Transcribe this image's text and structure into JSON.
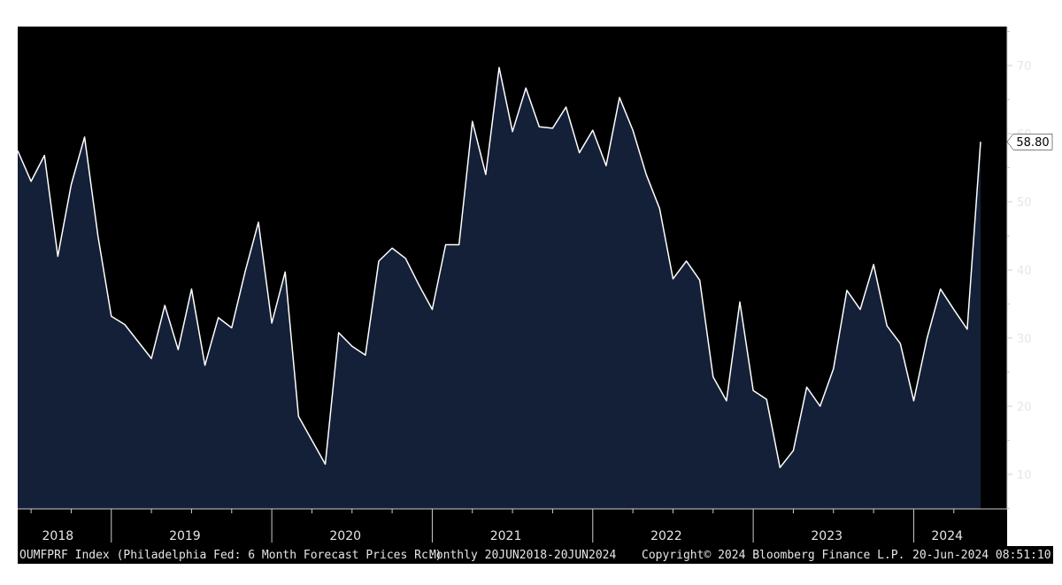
{
  "chart_data": {
    "type": "area",
    "series": [
      {
        "values": [
          57.5,
          53.0,
          56.8,
          42.0,
          52.5,
          59.5,
          45.0,
          33.2,
          32.0,
          29.5,
          27.0,
          34.8,
          28.3,
          37.2,
          26.0,
          33.0,
          31.5,
          39.7,
          47.0,
          32.2,
          39.7,
          18.5,
          15.0,
          11.5,
          30.8,
          28.8,
          27.5,
          41.3,
          43.2,
          41.7,
          37.8,
          34.2,
          43.7,
          43.7,
          61.8,
          54.0,
          69.7,
          60.3,
          66.7,
          61.0,
          60.8,
          63.9,
          57.2,
          60.5,
          55.3,
          65.3,
          60.5,
          54.0,
          49.0,
          38.7,
          41.3,
          38.5,
          24.3,
          20.8,
          35.3,
          22.3,
          21.0,
          11.0,
          13.5,
          22.8,
          20.0,
          25.5,
          37.0,
          34.2,
          40.8,
          31.8,
          29.2,
          20.8,
          30.0,
          37.2,
          34.2,
          31.3,
          58.8
        ]
      }
    ],
    "x_year_labels": [
      "2018",
      "2019",
      "2020",
      "2021",
      "2022",
      "2023",
      "2024"
    ],
    "y_ticks": [
      10,
      20,
      30,
      40,
      50,
      60,
      70
    ],
    "ylim": [
      4.6,
      75.5
    ],
    "last_value_label": "58.80",
    "colors": {
      "background": "#000000",
      "area_fill": "#142038",
      "line": "#ffffff",
      "axis": "#cccccc",
      "text": "#e6e6e6"
    }
  },
  "footer": {
    "ticker": "OUMFPRF Index (Philadelphia Fed: 6 Month Forecast Prices Rc.)",
    "range": "Monthly 20JUN2018-20JUN2024",
    "copyright": "Copyright© 2024 Bloomberg Finance L.P.",
    "timestamp": "20-Jun-2024 08:51:10"
  }
}
